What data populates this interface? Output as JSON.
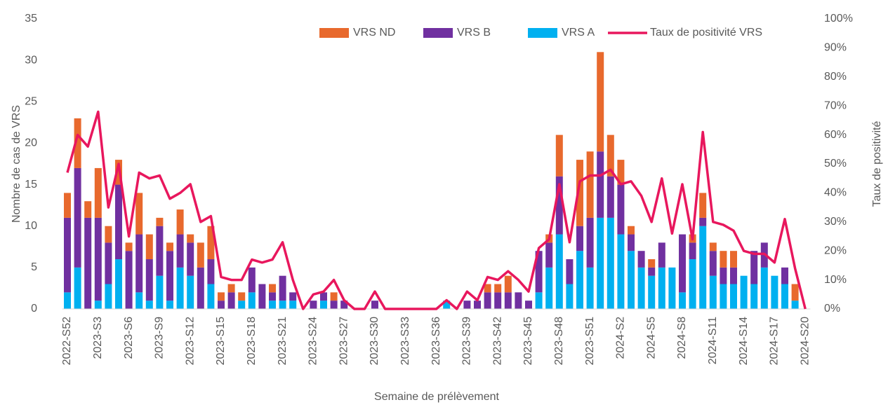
{
  "chart_data": {
    "type": "bar",
    "stacked": true,
    "x_label": "Semaine de prélèvement",
    "y_label": "Nombre de cas de VRS",
    "y2_label": "Taux de positivité",
    "categories": [
      "2022-S52",
      null,
      null,
      "2023-S3",
      null,
      null,
      "2023-S6",
      null,
      null,
      "2023-S9",
      null,
      null,
      "2023-S12",
      null,
      null,
      "2023-S15",
      null,
      null,
      "2023-S18",
      null,
      null,
      "2023-S21",
      null,
      null,
      "2023-S24",
      null,
      null,
      "2023-S27",
      null,
      null,
      "2023-S30",
      null,
      null,
      "2023-S33",
      null,
      null,
      "2023-S36",
      null,
      null,
      "2023-S39",
      null,
      null,
      "2023-S42",
      null,
      null,
      "2023-S45",
      null,
      null,
      "2023-S48",
      null,
      null,
      "2023-S51",
      null,
      null,
      "2024-S2",
      null,
      null,
      "2024-S5",
      null,
      null,
      "2024-S8",
      null,
      null,
      "2024-S11",
      null,
      null,
      "2024-S14",
      null,
      null,
      "2024-S17",
      null,
      null,
      "2024-S20"
    ],
    "series": [
      {
        "name": "VRS ND",
        "color": "#e8692d",
        "values": [
          3,
          6,
          2,
          6,
          2,
          3,
          1,
          5,
          3,
          1,
          1,
          3,
          1,
          3,
          4,
          1,
          1,
          1,
          0,
          0,
          1,
          0,
          0,
          0,
          0,
          0,
          1,
          0,
          0,
          0,
          0,
          0,
          0,
          0,
          0,
          0,
          0,
          0,
          0,
          0,
          0,
          1,
          1,
          2,
          0,
          0,
          0,
          1,
          5,
          0,
          8,
          8,
          12,
          5,
          3,
          1,
          0,
          1,
          0,
          0,
          0,
          1,
          3,
          1,
          2,
          2,
          0,
          0,
          0,
          0,
          0,
          2,
          0
        ]
      },
      {
        "name": "VRS B",
        "color": "#7030a0",
        "values": [
          9,
          12,
          11,
          10,
          5,
          9,
          7,
          7,
          5,
          6,
          6,
          4,
          4,
          5,
          3,
          1,
          2,
          0,
          3,
          3,
          1,
          3,
          1,
          0,
          1,
          1,
          1,
          1,
          0,
          0,
          1,
          0,
          0,
          0,
          0,
          0,
          0,
          0,
          0,
          1,
          1,
          2,
          2,
          2,
          2,
          1,
          5,
          3,
          7,
          3,
          3,
          6,
          8,
          5,
          6,
          2,
          2,
          1,
          3,
          0,
          7,
          2,
          1,
          3,
          2,
          2,
          0,
          4,
          3,
          0,
          2,
          0,
          0
        ]
      },
      {
        "name": "VRS A",
        "color": "#00b0f0",
        "values": [
          2,
          5,
          0,
          1,
          3,
          6,
          0,
          2,
          1,
          4,
          1,
          5,
          4,
          0,
          3,
          0,
          0,
          1,
          2,
          0,
          1,
          1,
          1,
          0,
          0,
          1,
          0,
          0,
          0,
          0,
          0,
          0,
          0,
          0,
          0,
          0,
          0,
          1,
          0,
          0,
          0,
          0,
          0,
          0,
          0,
          0,
          2,
          5,
          9,
          3,
          7,
          5,
          11,
          11,
          9,
          7,
          5,
          4,
          5,
          5,
          2,
          6,
          10,
          4,
          3,
          3,
          4,
          3,
          5,
          4,
          3,
          1,
          0
        ]
      },
      {
        "name": "Taux de positivité VRS",
        "color": "#e8175d",
        "type": "line",
        "axis": "y2",
        "values": [
          47,
          60,
          56,
          68,
          35,
          50,
          25,
          47,
          45,
          46,
          38,
          40,
          43,
          30,
          32,
          11,
          10,
          10,
          17,
          16,
          17,
          23,
          10,
          0,
          5,
          6,
          10,
          3,
          0,
          0,
          6,
          0,
          0,
          0,
          0,
          0,
          0,
          3,
          0,
          6,
          3,
          11,
          10,
          13,
          10,
          6,
          21,
          24,
          43,
          23,
          44,
          46,
          46,
          48,
          43,
          44,
          39,
          30,
          45,
          26,
          43,
          24,
          61,
          30,
          29,
          27,
          20,
          19,
          19,
          16,
          31,
          14,
          0
        ]
      }
    ],
    "ylim": [
      0,
      35
    ],
    "yticks": [
      0,
      5,
      10,
      15,
      20,
      25,
      30,
      35
    ],
    "y2lim": [
      0,
      100
    ],
    "y2ticks": [
      {
        "value": 0,
        "label": "0%"
      },
      {
        "value": 10,
        "label": "10%"
      },
      {
        "value": 20,
        "label": "20%"
      },
      {
        "value": 30,
        "label": "30%"
      },
      {
        "value": 40,
        "label": "40%"
      },
      {
        "value": 50,
        "label": "50%"
      },
      {
        "value": 60,
        "label": "60%"
      },
      {
        "value": 70,
        "label": "70%"
      },
      {
        "value": 80,
        "label": "80%"
      },
      {
        "value": 90,
        "label": "90%"
      },
      {
        "value": 100,
        "label": "100%"
      }
    ],
    "legend": "top"
  }
}
